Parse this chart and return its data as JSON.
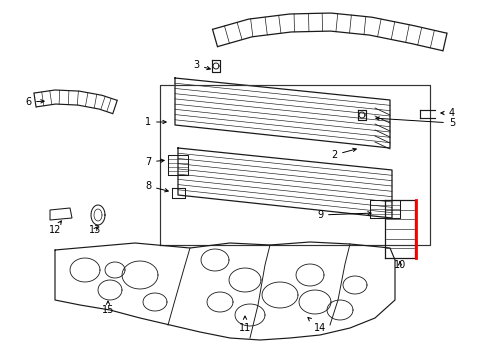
{
  "background_color": "#ffffff",
  "figsize": [
    4.89,
    3.6
  ],
  "dpi": 100,
  "line_color": "#1a1a1a",
  "red_color": "#ff0000",
  "label_fontsize": 7,
  "label_color": "#000000"
}
